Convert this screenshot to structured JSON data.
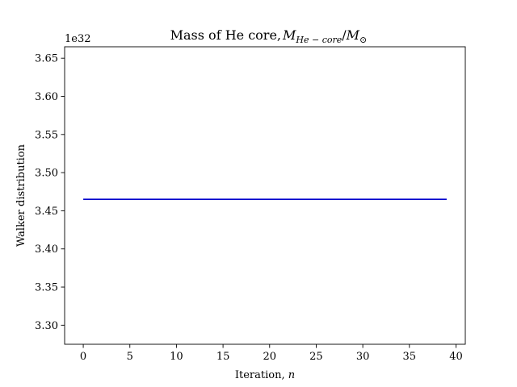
{
  "chart_data": {
    "type": "line",
    "title": "Mass of He core, ",
    "title_math": {
      "main": "M",
      "sub": "He − core",
      "slash": "/",
      "main2": "M",
      "sub2": "⊙"
    },
    "xlabel": "Iteration, ",
    "xlabel_var": "n",
    "ylabel": "Walker distribution",
    "y_offset_label": "1e32",
    "y_scale_factor": 1e+32,
    "xlim": [
      -2,
      41
    ],
    "ylim": [
      3.275,
      3.665
    ],
    "x_ticks": [
      0,
      5,
      10,
      15,
      20,
      25,
      30,
      35,
      40
    ],
    "y_ticks": [
      3.3,
      3.35,
      3.4,
      3.45,
      3.5,
      3.55,
      3.6,
      3.65
    ],
    "y_tick_labels": [
      "3.30",
      "3.35",
      "3.40",
      "3.45",
      "3.50",
      "3.55",
      "3.60",
      "3.65"
    ],
    "grid": false,
    "series": [
      {
        "color": "#0000cc",
        "x": [
          0,
          39
        ],
        "y": [
          3.465,
          3.465
        ]
      }
    ]
  }
}
